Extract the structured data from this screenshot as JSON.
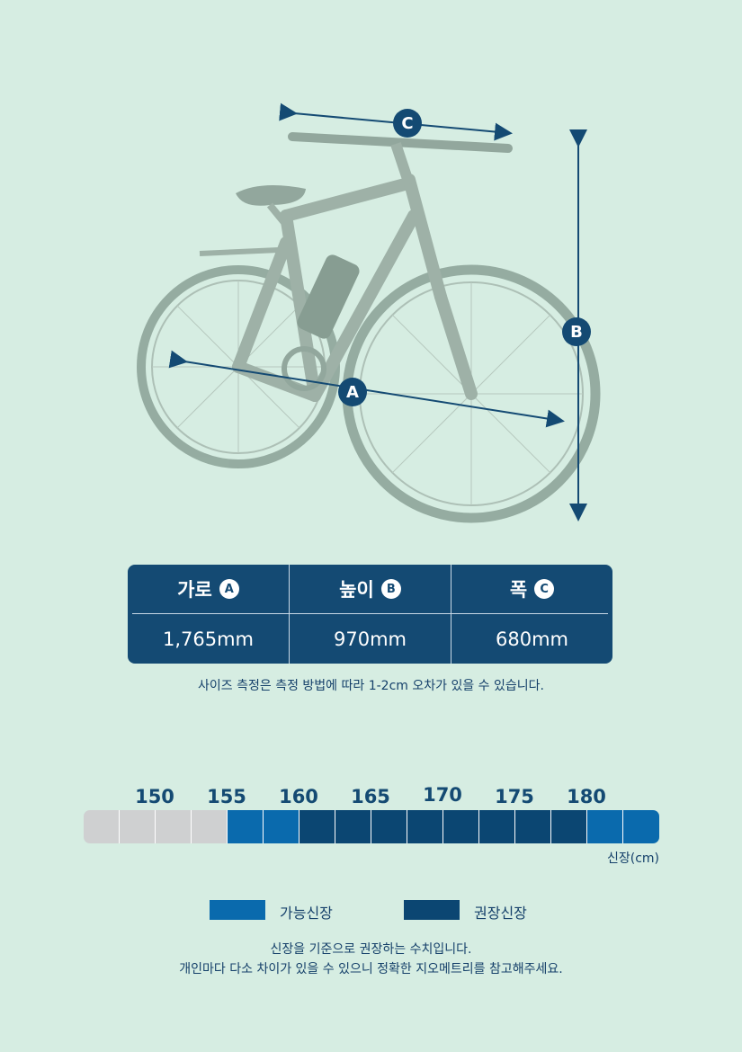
{
  "dimensions": {
    "headers": [
      {
        "label": "가로",
        "badge": "A"
      },
      {
        "label": "높이",
        "badge": "B"
      },
      {
        "label": "폭",
        "badge": "C"
      }
    ],
    "values": [
      "1,765mm",
      "970mm",
      "680mm"
    ],
    "note": "사이즈 측정은 측정 방법에 따라 1-2cm 오차가 있을 수 있습니다."
  },
  "diagram_labels": {
    "a": "A",
    "b": "B",
    "c": "C"
  },
  "height_chart": {
    "ticks": [
      "150",
      "155",
      "160",
      "165",
      "170",
      "175",
      "180"
    ],
    "unit_label": "신장(cm)",
    "segments": [
      "none",
      "none",
      "none",
      "none",
      "possible",
      "possible",
      "recommended",
      "recommended",
      "recommended",
      "recommended",
      "recommended",
      "recommended",
      "recommended",
      "recommended",
      "possible",
      "possible"
    ],
    "colors": {
      "none": "#cfd0d1",
      "possible": "#0a6aad",
      "recommended": "#0b4672"
    }
  },
  "legend": {
    "possible": "가능신장",
    "recommended": "권장신장"
  },
  "footnote": {
    "line1": "신장을 기준으로 권장하는 수치입니다.",
    "line2": "개인마다 다소 차이가 있을 수 있으니 정확한 지오메트리를 참고해주세요."
  }
}
